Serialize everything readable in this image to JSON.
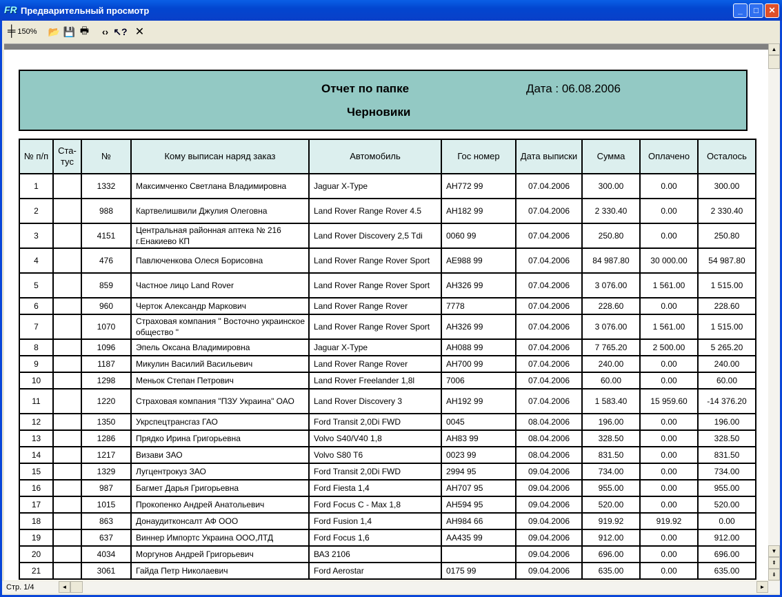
{
  "window": {
    "title": "Предварительный просмотр",
    "minimize": "_",
    "maximize": "□",
    "close": "✕"
  },
  "toolbar": {
    "zoom_label": "150%",
    "icons": [
      "zoom-icon",
      "open-icon",
      "save-icon",
      "print-icon",
      "find-icon",
      "help-icon",
      "close-icon"
    ]
  },
  "status": {
    "page": "Стр. 1/4"
  },
  "report": {
    "title": "Отчет по папке",
    "date": "Дата : 06.08.2006",
    "folder": "Черновики",
    "header_color": "#93c9c4"
  },
  "table": {
    "headers": [
      "№ п/п",
      "Ста-тус",
      "№",
      "Кому выписан наряд заказ",
      "Автомобиль",
      "Гос номер",
      "Дата выписки",
      "Сумма",
      "Оплачено",
      "Осталось"
    ],
    "rows": [
      [
        "1",
        "",
        "1332",
        "Максимченко Светлана Владимировна",
        "Jaguar X-Type",
        "АН772 99",
        "07.04.2006",
        "300.00",
        "0.00",
        "300.00"
      ],
      [
        "2",
        "",
        "988",
        "Картвелишвили Джулия Олеговна",
        "Land Rover Range Rover 4.5",
        "АН182 99",
        "07.04.2006",
        "2 330.40",
        "0.00",
        "2 330.40"
      ],
      [
        "3",
        "",
        "4151",
        "Центральная районная аптека № 216 г.Енакиево КП",
        "Land Rover Discovery 2,5 Tdi",
        "0060 99",
        "07.04.2006",
        "250.80",
        "0.00",
        "250.80"
      ],
      [
        "4",
        "",
        "476",
        "Павлюченкова Олеся Борисовна",
        "Land Rover Range Rover Sport",
        "АЕ988 99",
        "07.04.2006",
        "84 987.80",
        "30 000.00",
        "54 987.80"
      ],
      [
        "5",
        "",
        "859",
        "Частное лицо Land Rover",
        "Land Rover Range Rover Sport",
        "АН326 99",
        "07.04.2006",
        "3 076.00",
        "1 561.00",
        "1 515.00"
      ],
      [
        "6",
        "",
        "960",
        "Черток Александр Маркович",
        "Land Rover Range Rover",
        "7778",
        "07.04.2006",
        "228.60",
        "0.00",
        "228.60"
      ],
      [
        "7",
        "",
        "1070",
        "Страховая компания \" Восточно украинское общество \"",
        "Land Rover Range Rover Sport",
        "АН326 99",
        "07.04.2006",
        "3 076.00",
        "1 561.00",
        "1 515.00"
      ],
      [
        "8",
        "",
        "1096",
        "Эпель Оксана Владимировна",
        "Jaguar X-Type",
        "АН088 99",
        "07.04.2006",
        "7 765.20",
        "2 500.00",
        "5 265.20"
      ],
      [
        "9",
        "",
        "1187",
        "Микулин Василий Васильевич",
        "Land Rover Range Rover",
        "АН700 99",
        "07.04.2006",
        "240.00",
        "0.00",
        "240.00"
      ],
      [
        "10",
        "",
        "1298",
        "Меньок Степан Петрович",
        "Land Rover Freelander 1,8l",
        "7006",
        "07.04.2006",
        "60.00",
        "0.00",
        "60.00"
      ],
      [
        "11",
        "",
        "1220",
        "Страховая компания  \"ПЗУ Украина\" ОАО",
        "Land Rover Discovery 3",
        "АН192 99",
        "07.04.2006",
        "1 583.40",
        "15 959.60",
        "-14 376.20"
      ],
      [
        "12",
        "",
        "1350",
        "Укрспецтрансгаз ГАО",
        "Ford Transit 2,0Di FWD",
        "0045",
        "08.04.2006",
        "196.00",
        "0.00",
        "196.00"
      ],
      [
        "13",
        "",
        "1286",
        "Прядко Ирина Григорьевна",
        "Volvo S40/V40   1,8",
        "АН83 99",
        "08.04.2006",
        "328.50",
        "0.00",
        "328.50"
      ],
      [
        "14",
        "",
        "1217",
        "Визави ЗАО",
        "Volvo S80 T6",
        "0023 99",
        "08.04.2006",
        "831.50",
        "0.00",
        "831.50"
      ],
      [
        "15",
        "",
        "1329",
        "Лугцентрокуз ЗАО",
        "Ford Transit 2,0Di FWD",
        "2994 95",
        "09.04.2006",
        "734.00",
        "0.00",
        "734.00"
      ],
      [
        "16",
        "",
        "987",
        "Багмет Дарья Григорьевна",
        "Ford Fiesta 1,4",
        "АН707 95",
        "09.04.2006",
        "955.00",
        "0.00",
        "955.00"
      ],
      [
        "17",
        "",
        "1015",
        "Прокопенко Андрей Анатольевич",
        "Ford Focus C - Max  1,8",
        "АН594 95",
        "09.04.2006",
        "520.00",
        "0.00",
        "520.00"
      ],
      [
        "18",
        "",
        "863",
        "Донаудитконсалт АФ ООО",
        "Ford Fusion 1,4",
        "АН984 66",
        "09.04.2006",
        "919.92",
        "919.92",
        "0.00"
      ],
      [
        "19",
        "",
        "637",
        "Виннер Импортс Украина  ООО,ЛТД",
        "Ford Focus 1,6",
        "АА435 99",
        "09.04.2006",
        "912.00",
        "0.00",
        "912.00"
      ],
      [
        "20",
        "",
        "4034",
        "Моргунов Андрей Григорьевич",
        "ВАЗ 2106",
        "",
        "09.04.2006",
        "696.00",
        "0.00",
        "696.00"
      ],
      [
        "21",
        "",
        "3061",
        "Гайда Петр Николаевич",
        "Ford Aerostar",
        "0175 99",
        "09.04.2006",
        "635.00",
        "0.00",
        "635.00"
      ]
    ]
  }
}
